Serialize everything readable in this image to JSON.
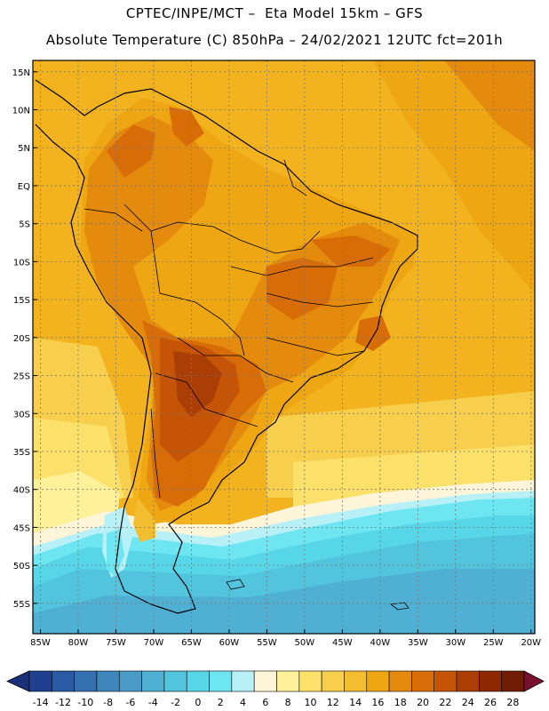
{
  "header": {
    "line1": "CPTEC/INPE/MCT –  Eta Model 15km – GFS",
    "line2": "Absolute Temperature (C) 850hPa – 24/02/2021 12UTC fct=201h"
  },
  "map": {
    "lat_labels": [
      "15N",
      "10N",
      "5N",
      "EQ",
      "5S",
      "10S",
      "15S",
      "20S",
      "25S",
      "30S",
      "35S",
      "40S",
      "45S",
      "50S",
      "55S"
    ],
    "lat_values": [
      15,
      10,
      5,
      0,
      -5,
      -10,
      -15,
      -20,
      -25,
      -30,
      -35,
      -40,
      -45,
      -50,
      -55
    ],
    "lon_labels": [
      "85W",
      "80W",
      "75W",
      "70W",
      "65W",
      "60W",
      "55W",
      "50W",
      "45W",
      "40W",
      "35W",
      "30W",
      "25W",
      "20W"
    ],
    "lon_values": [
      -85,
      -80,
      -75,
      -70,
      -65,
      -60,
      -55,
      -50,
      -45,
      -40,
      -35,
      -30,
      -25,
      -20
    ]
  },
  "colorbar": {
    "labels": [
      "-14",
      "-12",
      "-10",
      "-8",
      "-6",
      "-4",
      "-2",
      "0",
      "2",
      "4",
      "6",
      "8",
      "10",
      "12",
      "14",
      "16",
      "18",
      "20",
      "22",
      "24",
      "26",
      "28"
    ],
    "colors": [
      "#1f3f8f",
      "#2a5aa3",
      "#3470b0",
      "#3f86bd",
      "#4a9bc8",
      "#4fb0d4",
      "#52c4de",
      "#57d6e8",
      "#6ee6f2",
      "#b8f0f7",
      "#fff5d8",
      "#fff09a",
      "#fbe06a",
      "#f7cf4c",
      "#f3bd30",
      "#eea613",
      "#e48a0d",
      "#d86d08",
      "#c65406",
      "#ab3e04",
      "#8c2903",
      "#6f1d05"
    ],
    "low_arrow_color": "#1a2f7a",
    "high_arrow_color": "#7a1030"
  }
}
